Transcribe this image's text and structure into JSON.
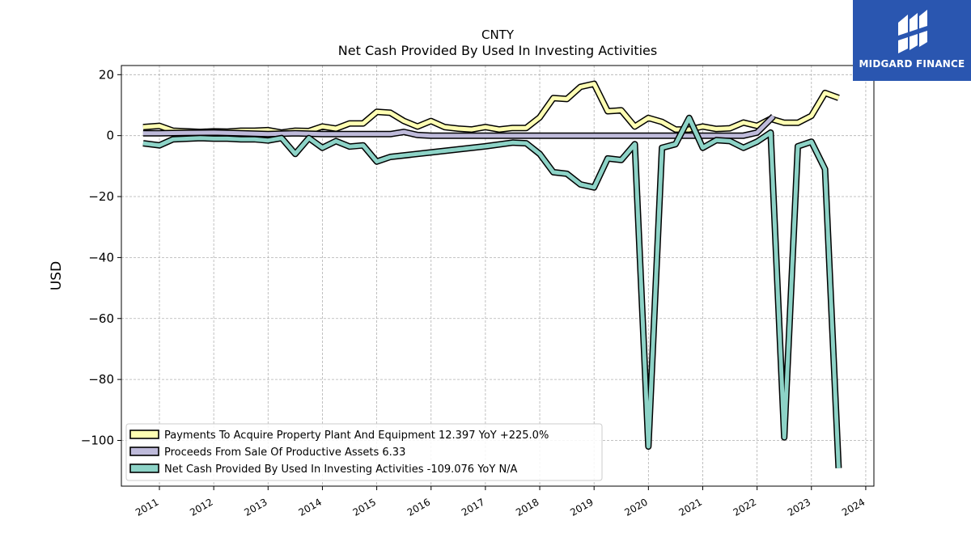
{
  "brand": {
    "name": "MIDGARD FINANCE",
    "color": "#2a56b0",
    "icon": "midgard-logo-icon"
  },
  "chart_data": {
    "type": "line",
    "title": "CNTY",
    "subtitle": "Net Cash Provided By Used In Investing Activities",
    "xlabel": "",
    "ylabel": "USD",
    "xlim": [
      2010.3,
      2024.15
    ],
    "ylim": [
      -115,
      23
    ],
    "grid": true,
    "legend_position": "lower-left",
    "x_ticks": [
      "2011",
      "2012",
      "2013",
      "2014",
      "2015",
      "2016",
      "2017",
      "2018",
      "2019",
      "2020",
      "2021",
      "2022",
      "2023",
      "2024"
    ],
    "y_ticks": [
      20,
      0,
      -20,
      -40,
      -60,
      -80,
      -100
    ],
    "series": [
      {
        "name": "Payments To Acquire Property Plant And Equipment  12.397 YoY +225.0%",
        "color": "#ffffb3",
        "points": [
          [
            2010.7,
            2.8
          ],
          [
            2011.0,
            3.2
          ],
          [
            2011.25,
            1.6
          ],
          [
            2011.75,
            1.2
          ],
          [
            2012.0,
            1.4
          ],
          [
            2012.25,
            1.3
          ],
          [
            2012.5,
            1.6
          ],
          [
            2012.75,
            1.6
          ],
          [
            2013.0,
            1.8
          ],
          [
            2013.25,
            1.0
          ],
          [
            2013.5,
            1.6
          ],
          [
            2013.75,
            1.5
          ],
          [
            2014.0,
            3.0
          ],
          [
            2014.25,
            2.3
          ],
          [
            2014.5,
            4.0
          ],
          [
            2014.75,
            4.0
          ],
          [
            2015.0,
            7.8
          ],
          [
            2015.25,
            7.5
          ],
          [
            2015.5,
            4.8
          ],
          [
            2015.75,
            3.0
          ],
          [
            2016.0,
            4.8
          ],
          [
            2016.25,
            2.8
          ],
          [
            2016.5,
            2.3
          ],
          [
            2016.75,
            2.0
          ],
          [
            2017.0,
            2.8
          ],
          [
            2017.25,
            2.0
          ],
          [
            2017.5,
            2.5
          ],
          [
            2017.75,
            2.5
          ],
          [
            2018.0,
            6.0
          ],
          [
            2018.25,
            12.3
          ],
          [
            2018.5,
            12.0
          ],
          [
            2018.75,
            16.0
          ],
          [
            2019.0,
            17.0
          ],
          [
            2019.25,
            8.0
          ],
          [
            2019.5,
            8.3
          ],
          [
            2019.75,
            3.0
          ],
          [
            2020.0,
            5.8
          ],
          [
            2020.25,
            4.5
          ],
          [
            2020.5,
            2.0
          ],
          [
            2020.75,
            2.0
          ],
          [
            2021.0,
            3.0
          ],
          [
            2021.25,
            2.2
          ],
          [
            2021.5,
            2.4
          ],
          [
            2021.75,
            4.3
          ],
          [
            2022.0,
            3.2
          ],
          [
            2022.25,
            5.5
          ],
          [
            2022.5,
            4.2
          ],
          [
            2022.75,
            4.2
          ],
          [
            2023.0,
            6.5
          ],
          [
            2023.25,
            14.0
          ],
          [
            2023.5,
            12.397
          ]
        ]
      },
      {
        "name": "Proceeds From Sale Of Productive Assets  6.33",
        "color": "#bebada",
        "points": [
          [
            2010.7,
            0.8
          ],
          [
            2011.0,
            0.8
          ],
          [
            2011.5,
            0.9
          ],
          [
            2012.0,
            1.0
          ],
          [
            2012.5,
            0.8
          ],
          [
            2013.0,
            0.5
          ],
          [
            2013.5,
            0.8
          ],
          [
            2014.0,
            0.5
          ],
          [
            2014.5,
            0.5
          ],
          [
            2015.0,
            0.5
          ],
          [
            2015.25,
            0.5
          ],
          [
            2015.5,
            1.2
          ],
          [
            2015.75,
            0.2
          ],
          [
            2016.0,
            0.0
          ],
          [
            2017.0,
            0.0
          ],
          [
            2018.0,
            0.0
          ],
          [
            2019.0,
            0.0
          ],
          [
            2020.0,
            0.0
          ],
          [
            2021.0,
            0.0
          ],
          [
            2021.75,
            0.0
          ],
          [
            2022.0,
            1.0
          ],
          [
            2022.3,
            6.33
          ]
        ]
      },
      {
        "name": "Net Cash Provided By Used In Investing Activities  -109.076 YoY N/A",
        "color": "#8dd3c7",
        "points": [
          [
            2010.7,
            -2.5
          ],
          [
            2011.0,
            -3.2
          ],
          [
            2011.25,
            -1.2
          ],
          [
            2011.75,
            -0.8
          ],
          [
            2012.0,
            -1.0
          ],
          [
            2012.25,
            -1.0
          ],
          [
            2012.5,
            -1.2
          ],
          [
            2012.75,
            -1.2
          ],
          [
            2013.0,
            -1.6
          ],
          [
            2013.25,
            -0.8
          ],
          [
            2013.5,
            -6.0
          ],
          [
            2013.75,
            -0.8
          ],
          [
            2014.0,
            -4.0
          ],
          [
            2014.25,
            -1.8
          ],
          [
            2014.5,
            -3.6
          ],
          [
            2014.75,
            -3.2
          ],
          [
            2015.0,
            -8.5
          ],
          [
            2015.25,
            -7.0
          ],
          [
            2016.0,
            -5.5
          ],
          [
            2017.0,
            -3.5
          ],
          [
            2017.5,
            -2.3
          ],
          [
            2017.75,
            -2.5
          ],
          [
            2018.0,
            -6.0
          ],
          [
            2018.25,
            -12.0
          ],
          [
            2018.5,
            -12.5
          ],
          [
            2018.75,
            -16.0
          ],
          [
            2019.0,
            -17.0
          ],
          [
            2019.25,
            -7.5
          ],
          [
            2019.5,
            -8.0
          ],
          [
            2019.75,
            -2.8
          ],
          [
            2020.0,
            -102.0
          ],
          [
            2020.25,
            -4.0
          ],
          [
            2020.5,
            -2.8
          ],
          [
            2020.75,
            5.8
          ],
          [
            2021.0,
            -4.0
          ],
          [
            2021.25,
            -1.5
          ],
          [
            2021.5,
            -1.8
          ],
          [
            2021.75,
            -4.0
          ],
          [
            2022.0,
            -2.0
          ],
          [
            2022.25,
            1.0
          ],
          [
            2022.5,
            -99.0
          ],
          [
            2022.75,
            -3.5
          ],
          [
            2023.0,
            -2.0
          ],
          [
            2023.25,
            -11.0
          ],
          [
            2023.5,
            -109.076
          ]
        ]
      }
    ]
  }
}
